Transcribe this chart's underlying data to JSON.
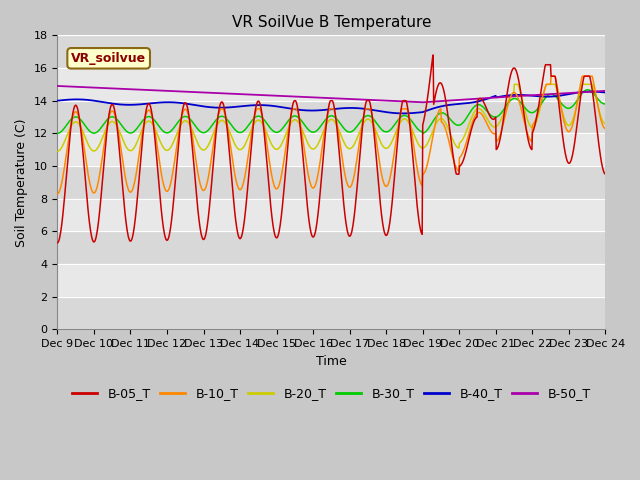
{
  "title": "VR SoilVue B Temperature",
  "ylabel": "Soil Temperature (C)",
  "xlabel": "Time",
  "ylim": [
    0,
    18
  ],
  "yticks": [
    0,
    2,
    4,
    6,
    8,
    10,
    12,
    14,
    16,
    18
  ],
  "xtick_labels": [
    "Dec 9",
    "Dec 10",
    "Dec 11",
    "Dec 12",
    "Dec 13",
    "Dec 14",
    "Dec 15",
    "Dec 16",
    "Dec 17",
    "Dec 18",
    "Dec 19",
    "Dec 20",
    "Dec 21",
    "Dec 22",
    "Dec 23",
    "Dec 24"
  ],
  "fig_bg_color": "#c8c8c8",
  "plot_bg_color": "#e8e8e8",
  "band_light_color": "#d8d8d8",
  "series_colors": {
    "B-05_T": "#cc0000",
    "B-10_T": "#ff8800",
    "B-20_T": "#cccc00",
    "B-30_T": "#00cc00",
    "B-40_T": "#0000cc",
    "B-50_T": "#aa00aa"
  },
  "title_fontsize": 11,
  "axis_fontsize": 9,
  "tick_fontsize": 8,
  "legend_fontsize": 9,
  "annotation_text": "VR_soilvue",
  "annotation_color": "#8b0000",
  "annotation_bg": "#ffffcc",
  "annotation_border": "#8b6914"
}
